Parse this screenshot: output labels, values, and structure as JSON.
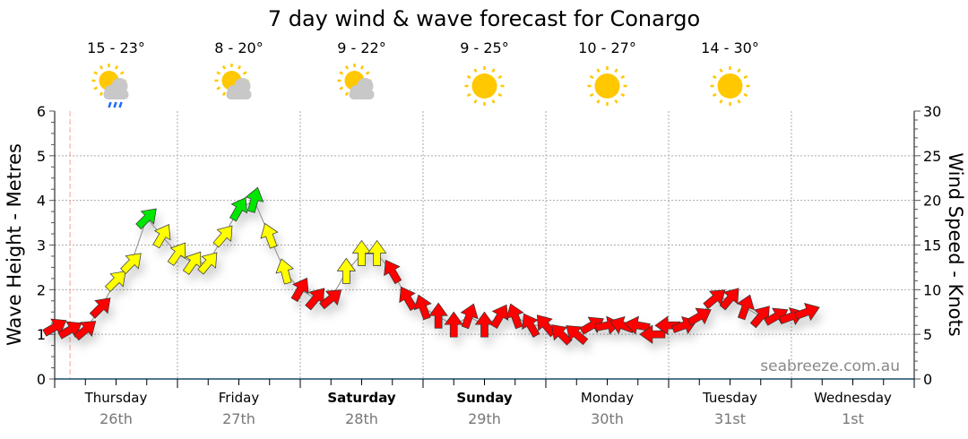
{
  "chart_data": {
    "type": "scatter",
    "title": "7 day wind & wave forecast for Conargo",
    "ylabel": "Wave Height - Metres",
    "y2label": "Wind Speed - Knots",
    "ylim": [
      0,
      6
    ],
    "y2lim": [
      0,
      30
    ],
    "yticks": [
      "0",
      "1",
      "2",
      "3",
      "4",
      "5",
      "6"
    ],
    "y2ticks": [
      "0",
      "5",
      "10",
      "15",
      "20",
      "25",
      "30"
    ],
    "grid": true,
    "watermark": "seabreeze.com.au",
    "days": [
      {
        "name": "Thursday",
        "date": "26th",
        "bold": false,
        "temp": "15 - 23°",
        "icon": "sun-cloud-rain"
      },
      {
        "name": "Friday",
        "date": "27th",
        "bold": false,
        "temp": "8 - 20°",
        "icon": "sun-cloud"
      },
      {
        "name": "Saturday",
        "date": "28th",
        "bold": true,
        "temp": "9 - 22°",
        "icon": "sun-cloud"
      },
      {
        "name": "Sunday",
        "date": "29th",
        "bold": true,
        "temp": "9 - 25°",
        "icon": "sun"
      },
      {
        "name": "Monday",
        "date": "30th",
        "bold": false,
        "temp": "10 - 27°",
        "icon": "sun"
      },
      {
        "name": "Tuesday",
        "date": "31st",
        "bold": false,
        "temp": "14 - 30°",
        "icon": "sun"
      },
      {
        "name": "Wednesday",
        "date": "1st",
        "bold": false
      }
    ],
    "colors": {
      "red": "#ff0000",
      "yellow": "#ffff00",
      "green": "#00e600",
      "sun": "#ffc800",
      "cloud": "#c8c8c8",
      "rain": "#1a6aff",
      "now_line": "#f4a0a0"
    },
    "now": "Thu 26 03:00",
    "wind": [
      {
        "t": "Thu 26 00:00",
        "kt": 5.8,
        "dir": 60,
        "c": "red"
      },
      {
        "t": "Thu 26 03:00",
        "kt": 5.5,
        "dir": 60,
        "c": "red"
      },
      {
        "t": "Thu 26 06:00",
        "kt": 5.5,
        "dir": 50,
        "c": "red"
      },
      {
        "t": "Thu 26 09:00",
        "kt": 8,
        "dir": 45,
        "c": "red"
      },
      {
        "t": "Thu 26 12:00",
        "kt": 11,
        "dir": 45,
        "c": "yellow"
      },
      {
        "t": "Thu 26 15:00",
        "kt": 13,
        "dir": 45,
        "c": "yellow"
      },
      {
        "t": "Thu 26 18:00",
        "kt": 18,
        "dir": 45,
        "c": "green"
      },
      {
        "t": "Thu 26 21:00",
        "kt": 16,
        "dir": 30,
        "c": "yellow"
      },
      {
        "t": "Fri 27 00:00",
        "kt": 14,
        "dir": 35,
        "c": "yellow"
      },
      {
        "t": "Fri 27 03:00",
        "kt": 13,
        "dir": 35,
        "c": "yellow"
      },
      {
        "t": "Fri 27 06:00",
        "kt": 13,
        "dir": 40,
        "c": "yellow"
      },
      {
        "t": "Fri 27 09:00",
        "kt": 16,
        "dir": 40,
        "c": "yellow"
      },
      {
        "t": "Fri 27 12:00",
        "kt": 19,
        "dir": 30,
        "c": "green"
      },
      {
        "t": "Fri 27 15:00",
        "kt": 20,
        "dir": 15,
        "c": "green"
      },
      {
        "t": "Fri 27 18:00",
        "kt": 16,
        "dir": -20,
        "c": "yellow"
      },
      {
        "t": "Fri 27 21:00",
        "kt": 12,
        "dir": -15,
        "c": "yellow"
      },
      {
        "t": "Sat 28 00:00",
        "kt": 10,
        "dir": 30,
        "c": "red"
      },
      {
        "t": "Sat 28 03:00",
        "kt": 9,
        "dir": 40,
        "c": "red"
      },
      {
        "t": "Sat 28 06:00",
        "kt": 9,
        "dir": 50,
        "c": "red"
      },
      {
        "t": "Sat 28 09:00",
        "kt": 12,
        "dir": 0,
        "c": "yellow"
      },
      {
        "t": "Sat 28 12:00",
        "kt": 14,
        "dir": 0,
        "c": "yellow"
      },
      {
        "t": "Sat 28 15:00",
        "kt": 14,
        "dir": 0,
        "c": "yellow"
      },
      {
        "t": "Sat 28 18:00",
        "kt": 12,
        "dir": -30,
        "c": "red"
      },
      {
        "t": "Sat 28 21:00",
        "kt": 9,
        "dir": -30,
        "c": "red"
      },
      {
        "t": "Sun 29 00:00",
        "kt": 8,
        "dir": -20,
        "c": "red"
      },
      {
        "t": "Sun 29 03:00",
        "kt": 7,
        "dir": 0,
        "c": "red"
      },
      {
        "t": "Sun 29 06:00",
        "kt": 6,
        "dir": 0,
        "c": "red"
      },
      {
        "t": "Sun 29 09:00",
        "kt": 7,
        "dir": 20,
        "c": "red"
      },
      {
        "t": "Sun 29 12:00",
        "kt": 6,
        "dir": 0,
        "c": "red"
      },
      {
        "t": "Sun 29 15:00",
        "kt": 7,
        "dir": 30,
        "c": "red"
      },
      {
        "t": "Sun 29 18:00",
        "kt": 7,
        "dir": -20,
        "c": "red"
      },
      {
        "t": "Sun 29 21:00",
        "kt": 6,
        "dir": -30,
        "c": "red"
      },
      {
        "t": "Mon 30 00:00",
        "kt": 6,
        "dir": -40,
        "c": "red"
      },
      {
        "t": "Mon 30 03:00",
        "kt": 5,
        "dir": -45,
        "c": "red"
      },
      {
        "t": "Mon 30 06:00",
        "kt": 5,
        "dir": -50,
        "c": "red"
      },
      {
        "t": "Mon 30 09:00",
        "kt": 6,
        "dir": 60,
        "c": "red"
      },
      {
        "t": "Mon 30 12:00",
        "kt": 6,
        "dir": 80,
        "c": "red"
      },
      {
        "t": "Mon 30 15:00",
        "kt": 6,
        "dir": -70,
        "c": "red"
      },
      {
        "t": "Mon 30 18:00",
        "kt": 6,
        "dir": -80,
        "c": "red"
      },
      {
        "t": "Mon 30 21:00",
        "kt": 5,
        "dir": -90,
        "c": "red"
      },
      {
        "t": "Tue 31 00:00",
        "kt": 6,
        "dir": -90,
        "c": "red"
      },
      {
        "t": "Tue 31 03:00",
        "kt": 6,
        "dir": 70,
        "c": "red"
      },
      {
        "t": "Tue 31 06:00",
        "kt": 7,
        "dir": 60,
        "c": "red"
      },
      {
        "t": "Tue 31 09:00",
        "kt": 9,
        "dir": 50,
        "c": "red"
      },
      {
        "t": "Tue 31 12:00",
        "kt": 9,
        "dir": 40,
        "c": "red"
      },
      {
        "t": "Tue 31 15:00",
        "kt": 8,
        "dir": 20,
        "c": "red"
      },
      {
        "t": "Tue 31 18:00",
        "kt": 7,
        "dir": 40,
        "c": "red"
      },
      {
        "t": "Tue 31 21:00",
        "kt": 7,
        "dir": 60,
        "c": "red"
      },
      {
        "t": "Wed 1 00:00",
        "kt": 7,
        "dir": 70,
        "c": "red"
      },
      {
        "t": "Wed 1 03:00",
        "kt": 7.5,
        "dir": 70,
        "c": "red"
      }
    ]
  }
}
